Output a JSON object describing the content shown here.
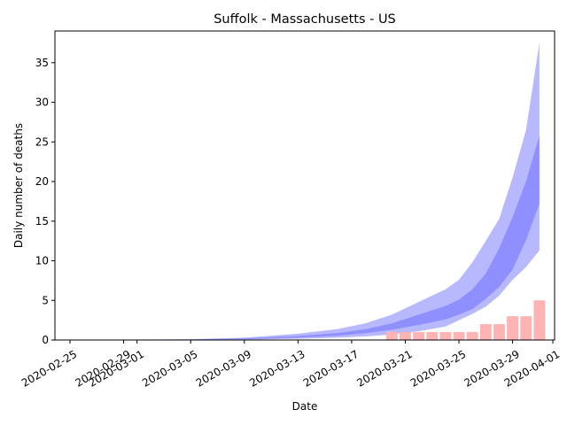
{
  "chart_data": {
    "type": "bar",
    "title": "Suffolk - Massachusetts - US",
    "xlabel": "Date",
    "ylabel": "Daily number of deaths",
    "xlim": [
      "2020-02-25",
      "2020-04-01"
    ],
    "ylim": [
      0,
      39
    ],
    "grid": false,
    "x_ticks": [
      "2020-02-25",
      "2020-02-29",
      "2020-03-01",
      "2020-03-05",
      "2020-03-09",
      "2020-03-13",
      "2020-03-17",
      "2020-03-21",
      "2020-03-25",
      "2020-03-29",
      "2020-04-01"
    ],
    "y_ticks": [
      0,
      5,
      10,
      15,
      20,
      25,
      30,
      35
    ],
    "colors": {
      "bars": "#ffb3b3",
      "band": "#0000ff"
    },
    "bars": {
      "dates": [
        "2020-03-20",
        "2020-03-21",
        "2020-03-22",
        "2020-03-23",
        "2020-03-24",
        "2020-03-25",
        "2020-03-26",
        "2020-03-27",
        "2020-03-28",
        "2020-03-29",
        "2020-03-30",
        "2020-03-31"
      ],
      "values": [
        1,
        1,
        1,
        1,
        1,
        1,
        1,
        2,
        2,
        3,
        3,
        5
      ]
    },
    "bands": {
      "dates": [
        "2020-02-26",
        "2020-03-01",
        "2020-03-05",
        "2020-03-09",
        "2020-03-13",
        "2020-03-16",
        "2020-03-18",
        "2020-03-20",
        "2020-03-22",
        "2020-03-24",
        "2020-03-25",
        "2020-03-26",
        "2020-03-27",
        "2020-03-28",
        "2020-03-29",
        "2020-03-30",
        "2020-03-31"
      ],
      "outer_upper": [
        0.02,
        0.05,
        0.1,
        0.3,
        0.8,
        1.4,
        2.1,
        3.2,
        4.8,
        6.4,
        7.6,
        9.8,
        12.5,
        15.3,
        20.5,
        26.5,
        37.5
      ],
      "inner_upper": [
        0.01,
        0.03,
        0.07,
        0.2,
        0.5,
        0.9,
        1.35,
        2.1,
        3.2,
        4.3,
        5.1,
        6.4,
        8.4,
        11.6,
        15.5,
        20.0,
        25.8
      ],
      "inner_lower": [
        0.005,
        0.015,
        0.04,
        0.1,
        0.3,
        0.55,
        0.85,
        1.3,
        1.9,
        2.6,
        3.2,
        3.9,
        5.2,
        6.7,
        8.9,
        12.6,
        17.2
      ],
      "outer_lower": [
        0.0,
        0.005,
        0.02,
        0.05,
        0.15,
        0.3,
        0.45,
        0.7,
        1.1,
        1.7,
        2.5,
        3.3,
        4.2,
        5.6,
        7.6,
        9.2,
        11.3
      ]
    }
  }
}
